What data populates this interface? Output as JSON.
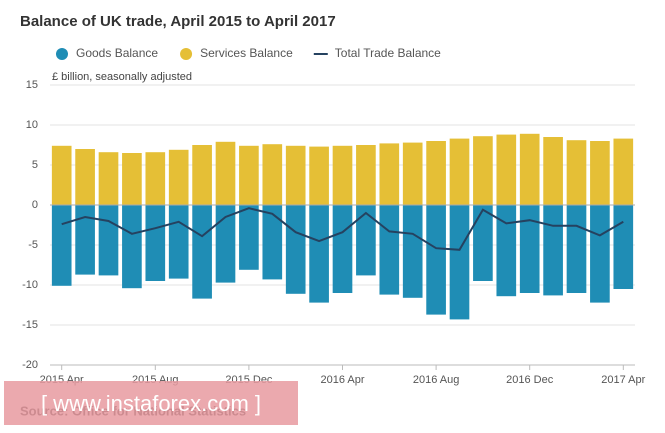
{
  "chart_data": {
    "type": "bar",
    "title": "Balance of UK trade, April 2015 to April 2017",
    "y_label": "£ billion, seasonally adjusted",
    "source": "Source: Office for National Statistics",
    "watermark": "[ www.instaforex.com ]",
    "categories": [
      "2015 Apr",
      null,
      null,
      null,
      "2015 Aug",
      null,
      null,
      null,
      "2015 Dec",
      null,
      null,
      null,
      "2016 Apr",
      null,
      null,
      null,
      "2016 Aug",
      null,
      null,
      null,
      "2016 Dec",
      null,
      null,
      null,
      "2017 Apr"
    ],
    "series": [
      {
        "name": "Goods Balance",
        "color": "#1f8db5",
        "values": [
          -10.1,
          -8.7,
          -8.8,
          -10.4,
          -9.5,
          -9.2,
          -11.7,
          -9.7,
          -8.1,
          -9.3,
          -11.1,
          -12.2,
          -11.0,
          -8.8,
          -11.2,
          -11.6,
          -13.7,
          -14.3,
          -9.5,
          -11.4,
          -11.0,
          -11.3,
          -11.0,
          -12.2,
          -10.5
        ]
      },
      {
        "name": "Services Balance",
        "color": "#e5bf36",
        "values": [
          7.4,
          7.0,
          6.6,
          6.5,
          6.6,
          6.9,
          7.5,
          7.9,
          7.4,
          7.6,
          7.4,
          7.3,
          7.4,
          7.5,
          7.7,
          7.8,
          8.0,
          8.3,
          8.6,
          8.8,
          8.9,
          8.5,
          8.1,
          8.0,
          8.3
        ]
      },
      {
        "name": "Total Trade Balance",
        "color": "#254260",
        "line": true,
        "values": [
          -2.4,
          -1.5,
          -2.0,
          -3.6,
          -2.9,
          -2.1,
          -3.9,
          -1.5,
          -0.4,
          -1.1,
          -3.4,
          -4.5,
          -3.4,
          -1.0,
          -3.3,
          -3.6,
          -5.4,
          -5.6,
          -0.6,
          -2.3,
          -1.9,
          -2.6,
          -2.6,
          -3.8,
          -2.1
        ]
      }
    ],
    "ylim": [
      -20,
      15
    ],
    "yticks": [
      -20,
      -15,
      -10,
      -5,
      0,
      5,
      10,
      15
    ],
    "grid": true
  }
}
